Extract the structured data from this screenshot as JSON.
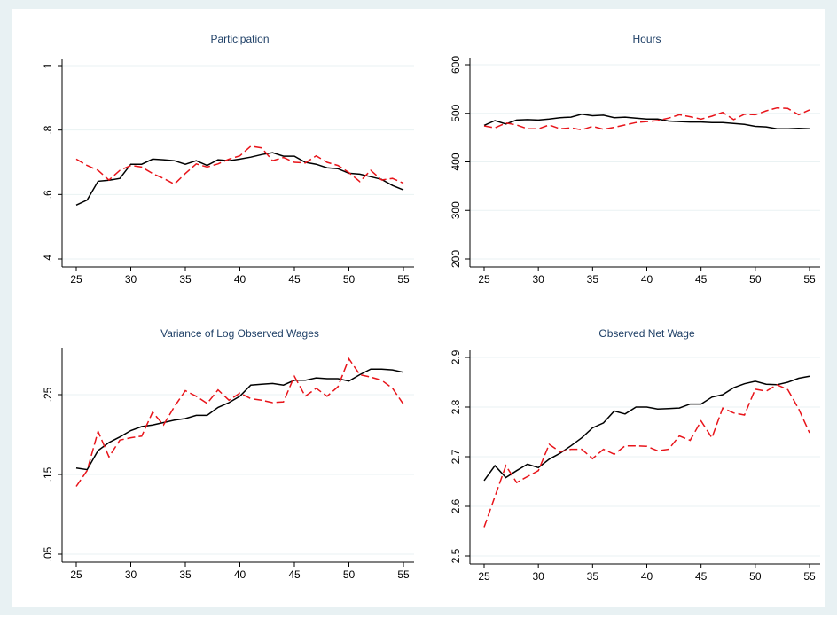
{
  "chart_data": [
    {
      "type": "line",
      "title": "Participation",
      "x": [
        25,
        26,
        27,
        28,
        29,
        30,
        31,
        32,
        33,
        34,
        35,
        36,
        37,
        38,
        39,
        40,
        41,
        42,
        43,
        44,
        45,
        46,
        47,
        48,
        49,
        50,
        51,
        52,
        53,
        54,
        55
      ],
      "xlim": [
        25,
        55
      ],
      "xticks": [
        25,
        30,
        35,
        40,
        45,
        50,
        55
      ],
      "ylim": [
        0.4,
        1
      ],
      "yticks": [
        {
          "value": 0.4,
          "label": ".4"
        },
        {
          "value": 0.6,
          "label": ".6"
        },
        {
          "value": 0.8,
          "label": ".8"
        },
        1
      ],
      "grid": true,
      "series": [
        {
          "color": "#000000",
          "dash": false,
          "values": [
            0.567,
            0.583,
            0.641,
            0.644,
            0.65,
            0.694,
            0.694,
            0.71,
            0.708,
            0.705,
            0.694,
            0.705,
            0.69,
            0.708,
            0.705,
            0.71,
            0.716,
            0.724,
            0.73,
            0.719,
            0.719,
            0.7,
            0.694,
            0.683,
            0.68,
            0.666,
            0.663,
            0.655,
            0.647,
            0.628,
            0.614
          ]
        },
        {
          "color": "#e8141a",
          "dash": true,
          "values": [
            0.71,
            0.69,
            0.675,
            0.645,
            0.675,
            0.69,
            0.685,
            0.665,
            0.65,
            0.632,
            0.665,
            0.695,
            0.685,
            0.695,
            0.71,
            0.72,
            0.75,
            0.745,
            0.705,
            0.715,
            0.7,
            0.698,
            0.72,
            0.7,
            0.69,
            0.668,
            0.64,
            0.675,
            0.645,
            0.65,
            0.635
          ]
        }
      ]
    },
    {
      "type": "line",
      "title": "Hours",
      "x": [
        25,
        26,
        27,
        28,
        29,
        30,
        31,
        32,
        33,
        34,
        35,
        36,
        37,
        38,
        39,
        40,
        41,
        42,
        43,
        44,
        45,
        46,
        47,
        48,
        49,
        50,
        51,
        52,
        53,
        54,
        55
      ],
      "xlim": [
        25,
        55
      ],
      "xticks": [
        25,
        30,
        35,
        40,
        45,
        50,
        55
      ],
      "ylim": [
        200,
        600
      ],
      "yticks": [
        200,
        300,
        400,
        500,
        600
      ],
      "grid": true,
      "series": [
        {
          "color": "#000000",
          "dash": false,
          "values": [
            475,
            485,
            478,
            486,
            487,
            486,
            488,
            491,
            492,
            498,
            495,
            496,
            491,
            492,
            490,
            488,
            488,
            484,
            483,
            482,
            482,
            481,
            481,
            479,
            477,
            473,
            472,
            468,
            468,
            469,
            468
          ]
        },
        {
          "color": "#e8141a",
          "dash": true,
          "values": [
            474,
            470,
            480,
            476,
            468,
            468,
            476,
            468,
            470,
            466,
            473,
            467,
            471,
            476,
            481,
            483,
            485,
            490,
            497,
            493,
            488,
            494,
            502,
            487,
            498,
            497,
            505,
            511,
            510,
            497,
            507
          ]
        }
      ]
    },
    {
      "type": "line",
      "title": "Variance of Log Observed Wages",
      "x": [
        25,
        26,
        27,
        28,
        29,
        30,
        31,
        32,
        33,
        34,
        35,
        36,
        37,
        38,
        39,
        40,
        41,
        42,
        43,
        44,
        45,
        46,
        47,
        48,
        49,
        50,
        51,
        52,
        53,
        54,
        55
      ],
      "xlim": [
        25,
        55
      ],
      "xticks": [
        25,
        30,
        35,
        40,
        45,
        50,
        55
      ],
      "ylim": [
        0.05,
        0.3
      ],
      "yticks": [
        {
          "value": 0.05,
          "label": ".05"
        },
        {
          "value": 0.15,
          "label": ".15"
        },
        {
          "value": 0.25,
          "label": ".25"
        }
      ],
      "grid": true,
      "series": [
        {
          "color": "#000000",
          "dash": false,
          "values": [
            0.158,
            0.156,
            0.18,
            0.19,
            0.197,
            0.205,
            0.21,
            0.212,
            0.215,
            0.218,
            0.22,
            0.224,
            0.224,
            0.234,
            0.24,
            0.248,
            0.262,
            0.263,
            0.264,
            0.262,
            0.268,
            0.268,
            0.271,
            0.27,
            0.27,
            0.267,
            0.275,
            0.282,
            0.282,
            0.281,
            0.278
          ]
        },
        {
          "color": "#e8141a",
          "dash": true,
          "values": [
            0.135,
            0.155,
            0.204,
            0.172,
            0.193,
            0.196,
            0.198,
            0.228,
            0.212,
            0.235,
            0.255,
            0.248,
            0.239,
            0.256,
            0.243,
            0.252,
            0.245,
            0.243,
            0.24,
            0.241,
            0.273,
            0.248,
            0.258,
            0.248,
            0.26,
            0.295,
            0.275,
            0.272,
            0.268,
            0.258,
            0.238
          ]
        }
      ]
    },
    {
      "type": "line",
      "title": "Observed Net Wage",
      "x": [
        25,
        26,
        27,
        28,
        29,
        30,
        31,
        32,
        33,
        34,
        35,
        36,
        37,
        38,
        39,
        40,
        41,
        42,
        43,
        44,
        45,
        46,
        47,
        48,
        49,
        50,
        51,
        52,
        53,
        54,
        55
      ],
      "xlim": [
        25,
        55
      ],
      "xticks": [
        25,
        30,
        35,
        40,
        45,
        50,
        55
      ],
      "ylim": [
        2.5,
        2.9
      ],
      "yticks": [
        2.5,
        2.6,
        2.7,
        2.8,
        2.9
      ],
      "grid": true,
      "series": [
        {
          "color": "#000000",
          "dash": false,
          "values": [
            2.652,
            2.682,
            2.658,
            2.672,
            2.685,
            2.678,
            2.695,
            2.707,
            2.722,
            2.738,
            2.758,
            2.768,
            2.792,
            2.786,
            2.8,
            2.8,
            2.796,
            2.797,
            2.798,
            2.806,
            2.806,
            2.82,
            2.825,
            2.839,
            2.847,
            2.852,
            2.846,
            2.845,
            2.85,
            2.858,
            2.862
          ]
        },
        {
          "color": "#e8141a",
          "dash": true,
          "values": [
            2.558,
            2.62,
            2.682,
            2.648,
            2.66,
            2.672,
            2.725,
            2.71,
            2.715,
            2.715,
            2.696,
            2.715,
            2.705,
            2.722,
            2.722,
            2.721,
            2.712,
            2.715,
            2.742,
            2.733,
            2.772,
            2.738,
            2.798,
            2.788,
            2.784,
            2.836,
            2.832,
            2.845,
            2.835,
            2.796,
            2.748
          ]
        }
      ]
    }
  ]
}
